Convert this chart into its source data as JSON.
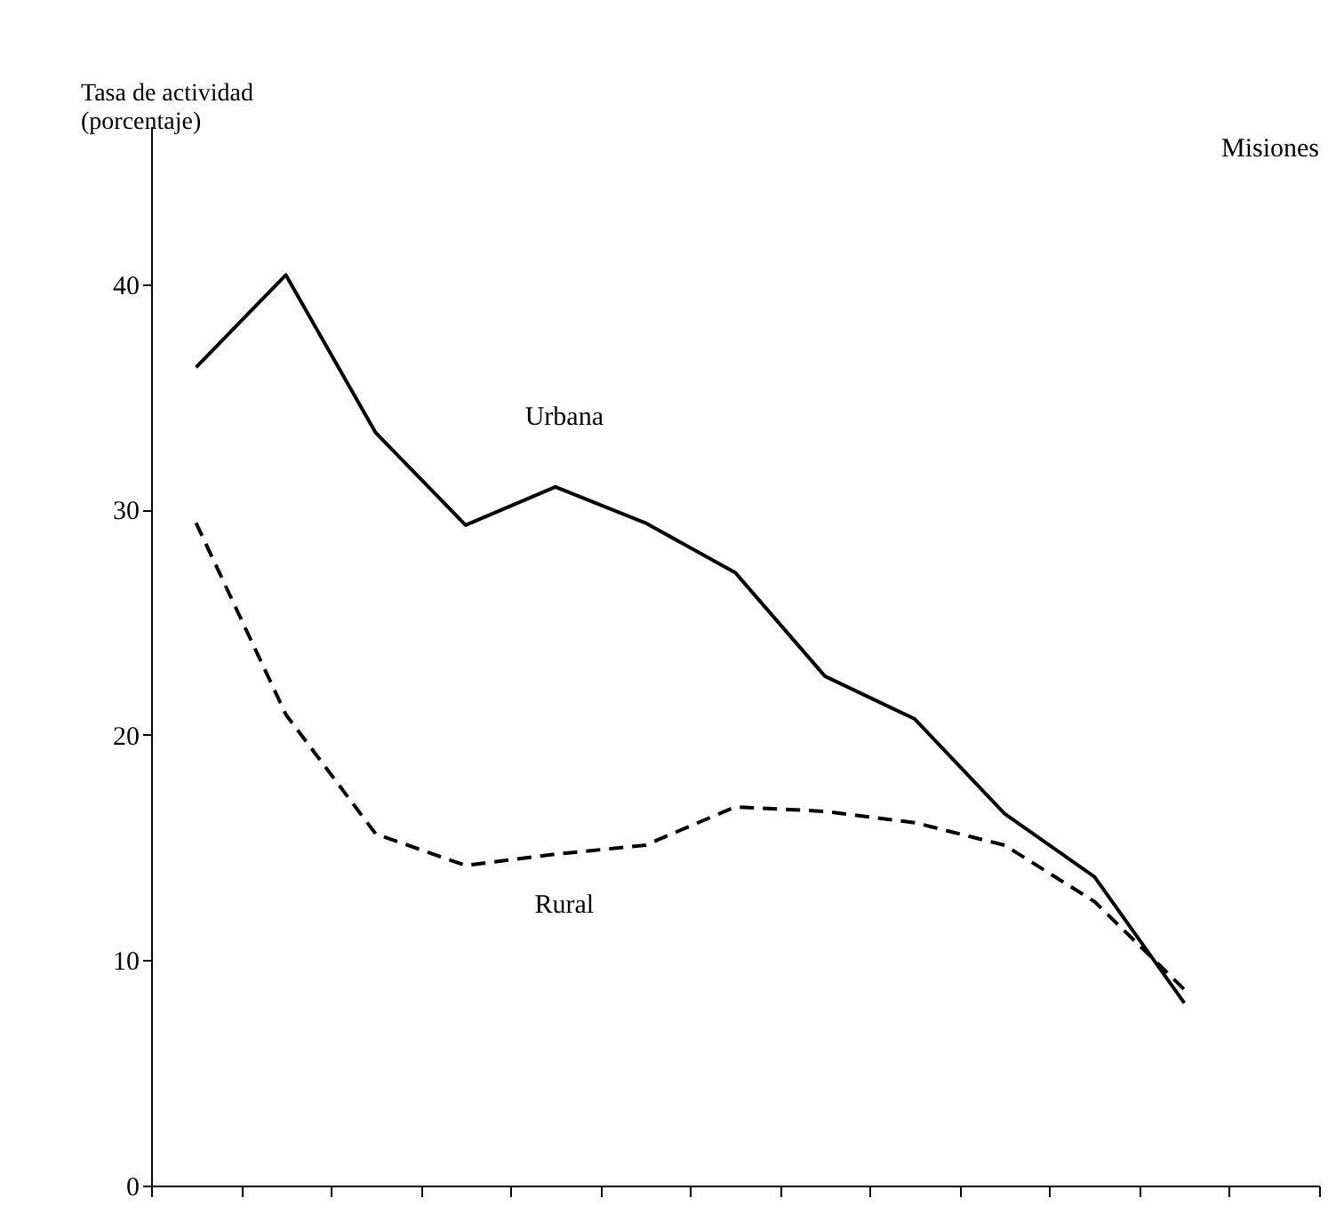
{
  "chart_data": {
    "type": "line",
    "ylabel": "Tasa de actividad (porcentaje)",
    "annotations": [
      "Misiones"
    ],
    "categories": [
      null,
      null,
      null,
      null,
      null,
      null,
      null,
      null,
      null,
      null,
      null,
      null,
      null
    ],
    "series": [
      {
        "name": "Urbana",
        "color": "#000000",
        "line_style": "solid",
        "values": [
          36.3,
          40.4,
          33.4,
          29.3,
          31.0,
          29.4,
          27.2,
          22.6,
          20.7,
          16.5,
          13.7,
          8.1,
          null
        ]
      },
      {
        "name": "Rural",
        "color": "#000000",
        "line_style": "dashed",
        "values": [
          29.4,
          20.9,
          15.6,
          14.2,
          14.7,
          15.1,
          16.8,
          16.6,
          16.1,
          15.1,
          12.6,
          8.7,
          null
        ]
      }
    ],
    "ylim": [
      0,
      47
    ],
    "yticks": [
      0,
      10,
      20,
      30,
      40
    ],
    "grid": false,
    "tick_labels": "y",
    "marker": "none"
  }
}
